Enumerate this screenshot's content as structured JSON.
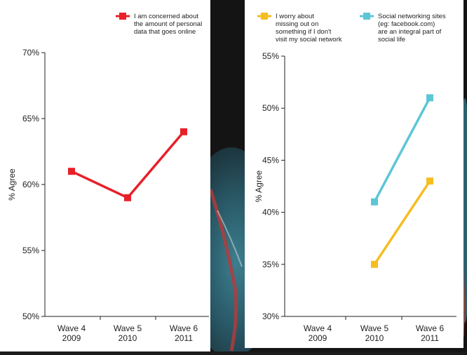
{
  "colors": {
    "red": "#e8202a",
    "yellow": "#f5bd1f",
    "cyan": "#5cc6d6",
    "panel": "#ffffff",
    "backdrop": "#1c1c1c"
  },
  "chart_data": [
    {
      "type": "line",
      "ylabel": "% Agree",
      "ylim": [
        50,
        70
      ],
      "yticks": [
        "50%",
        "55%",
        "60%",
        "65%",
        "70%"
      ],
      "ytick_values": [
        50,
        55,
        60,
        65,
        70
      ],
      "categories": [
        [
          "Wave 4",
          "2009"
        ],
        [
          "Wave 5",
          "2010"
        ],
        [
          "Wave 6",
          "2011"
        ]
      ],
      "legend_position": "top-right",
      "series": [
        {
          "name": [
            "I am concerned about",
            "the amount of personal",
            "data that goes online"
          ],
          "color": "#e8202a",
          "values": [
            61,
            59,
            64
          ]
        }
      ]
    },
    {
      "type": "line",
      "ylabel": "% Agree",
      "ylim": [
        30,
        55
      ],
      "yticks": [
        "30%",
        "35%",
        "40%",
        "45%",
        "50%",
        "55%"
      ],
      "ytick_values": [
        30,
        35,
        40,
        45,
        50,
        55
      ],
      "categories": [
        [
          "Wave 4",
          "2009"
        ],
        [
          "Wave 5",
          "2010"
        ],
        [
          "Wave 6",
          "2011"
        ]
      ],
      "legend_position": "top",
      "series": [
        {
          "name": [
            "I worry about",
            "missing out on",
            "something if I don't",
            "visit my social network"
          ],
          "color": "#f5bd1f",
          "values": [
            null,
            35,
            43
          ]
        },
        {
          "name": [
            "Social networking sites",
            "(eg: facebook.com)",
            "are an integral part of",
            "social life"
          ],
          "color": "#5cc6d6",
          "values": [
            null,
            41,
            51
          ]
        }
      ]
    }
  ]
}
